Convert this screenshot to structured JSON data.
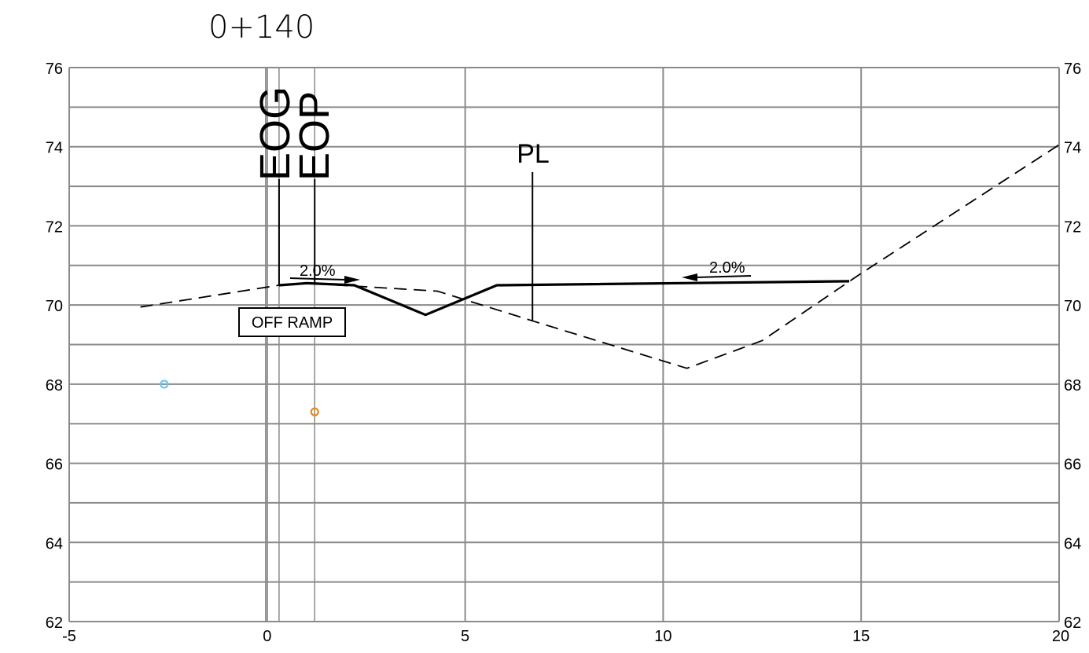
{
  "station": "0+140",
  "labels": {
    "eog": "EOG",
    "eop": "EOP",
    "pl": "PL",
    "ramp": "OFF RAMP",
    "slope_left": "2.0%",
    "slope_right": "2.0%"
  },
  "axes": {
    "x_ticks": [
      "-5",
      "0",
      "5",
      "10",
      "15",
      "20"
    ],
    "y_ticks": [
      "62",
      "64",
      "66",
      "68",
      "70",
      "72",
      "74",
      "76"
    ],
    "x_range": [
      -5,
      20
    ],
    "y_range": [
      62,
      76
    ]
  },
  "reference_offsets": {
    "centerline": 0,
    "eog": 0.3,
    "eop": 1.2,
    "pl": 6.7
  },
  "chart_data": {
    "type": "line",
    "title": "0+140",
    "xlim": [
      -5,
      20
    ],
    "ylim": [
      62,
      76
    ],
    "grid": true,
    "series": [
      {
        "style": "dashed",
        "x": [
          -3.2,
          0.3,
          1.0,
          4.3,
          6.7,
          10.6,
          12.5,
          15.0,
          20.0
        ],
        "y": [
          69.95,
          70.5,
          70.55,
          70.35,
          69.6,
          68.4,
          69.1,
          70.8,
          74.05
        ]
      },
      {
        "style": "solid",
        "x": [
          0.3,
          1.0,
          2.2,
          4.0,
          5.8,
          14.7
        ],
        "y": [
          70.5,
          70.55,
          70.5,
          69.75,
          70.5,
          70.6
        ]
      }
    ],
    "points": [
      {
        "x": -2.6,
        "y": 68.0,
        "color": "#6ec8ea"
      },
      {
        "x": 1.2,
        "y": 67.3,
        "color": "#e8881e"
      }
    ]
  }
}
